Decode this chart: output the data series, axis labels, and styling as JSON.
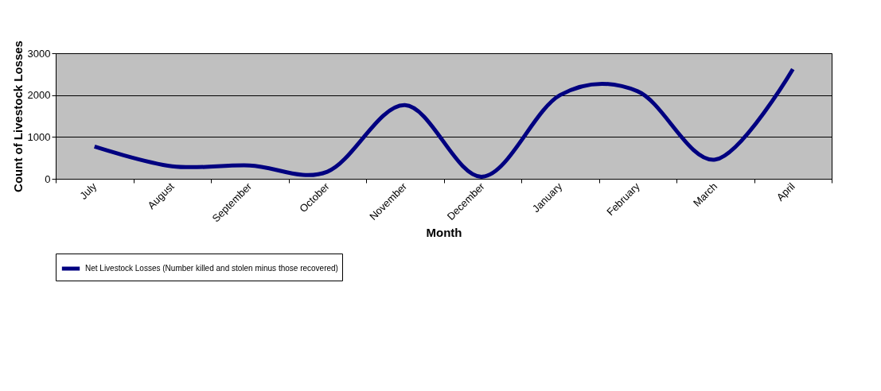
{
  "chart_data": {
    "type": "line",
    "xlabel": "Month",
    "ylabel": "Count of Livestock Losses",
    "categories": [
      "July",
      "August",
      "September",
      "October",
      "November",
      "December",
      "January",
      "February",
      "March",
      "April"
    ],
    "series": [
      {
        "name": "Net Livestock Losses (Number killed and stolen minus those recovered)",
        "color": "#000080",
        "values": [
          770,
          300,
          320,
          170,
          1760,
          50,
          2000,
          2090,
          460,
          2620
        ]
      }
    ],
    "ylim": [
      0,
      3000
    ],
    "yticks": [
      0,
      1000,
      2000,
      3000
    ],
    "grid": "y",
    "legend": "bottom",
    "line_style": "solid"
  }
}
